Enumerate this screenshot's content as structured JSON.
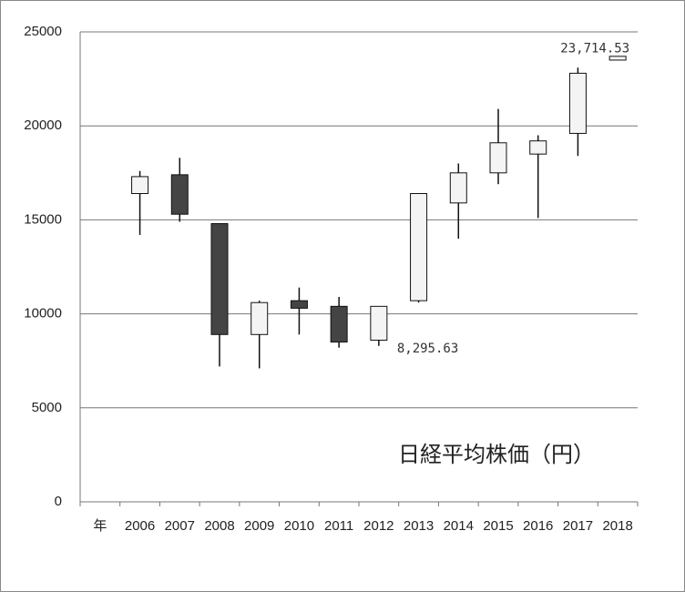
{
  "chart_data": {
    "type": "candlestick",
    "title": "日経平均株価（円）",
    "categories": [
      "年",
      "2006",
      "2007",
      "2008",
      "2009",
      "2010",
      "2011",
      "2012",
      "2013",
      "2014",
      "2015",
      "2016",
      "2017",
      "2018"
    ],
    "open": [
      null,
      16400,
      17400,
      14800,
      8900,
      10700,
      10400,
      8600,
      10700,
      15900,
      17500,
      18500,
      19600,
      23500
    ],
    "high": [
      null,
      17600,
      18300,
      14800,
      10700,
      11400,
      10900,
      10400,
      16400,
      18000,
      20900,
      19500,
      23100,
      23714.53
    ],
    "low": [
      null,
      14200,
      14900,
      7200,
      7100,
      8900,
      8200,
      8295.63,
      10600,
      14000,
      16900,
      15100,
      18400,
      23500
    ],
    "close": [
      null,
      17300,
      15300,
      8900,
      10600,
      10300,
      8500,
      10400,
      16400,
      17500,
      19100,
      19200,
      22800,
      23700
    ],
    "high_value_labels": [
      null,
      null,
      null,
      null,
      null,
      null,
      null,
      null,
      null,
      null,
      null,
      null,
      null,
      "23,714.53"
    ],
    "low_value_labels": [
      null,
      null,
      null,
      null,
      null,
      null,
      null,
      "8,295.63",
      null,
      null,
      null,
      null,
      null,
      null
    ],
    "up_color": "#f4f4f4",
    "down_color": "#444444",
    "ylim": [
      0,
      25000
    ],
    "yticks": [
      0,
      5000,
      10000,
      15000,
      20000,
      25000
    ],
    "grid": true
  }
}
